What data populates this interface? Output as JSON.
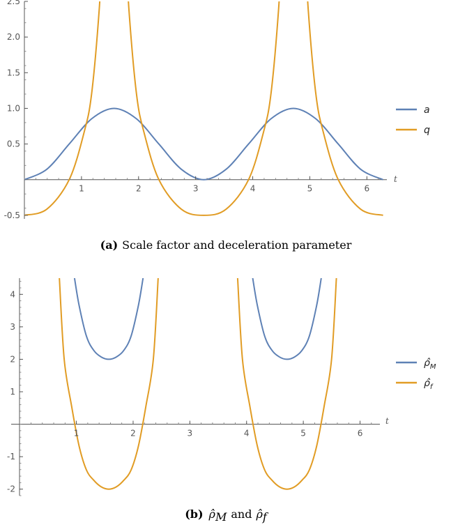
{
  "chart_data": [
    {
      "type": "line",
      "xlabel": "t",
      "ylabel": "",
      "xlim": [
        0,
        6.35
      ],
      "ylim": [
        -0.55,
        2.5
      ],
      "xticks": [
        1,
        2,
        3,
        4,
        5,
        6
      ],
      "xtick_labels": [
        "1",
        "2",
        "3",
        "4",
        "5",
        "6"
      ],
      "yticks": [
        -0.5,
        0.5,
        1.0,
        1.5,
        2.0,
        2.5
      ],
      "ytick_labels": [
        "-0.5",
        "0.5",
        "1.0",
        "1.5",
        "2.0",
        "2.5"
      ],
      "legend_position": "right",
      "series": [
        {
          "name": "a",
          "color": "#5e81b5",
          "x": [
            0,
            0.393,
            0.785,
            1.178,
            1.571,
            1.963,
            2.356,
            2.749,
            3.142,
            3.534,
            3.927,
            4.32,
            4.712,
            5.105,
            5.498,
            5.89,
            6.283
          ],
          "y": [
            0,
            0.146,
            0.5,
            0.854,
            1.0,
            0.854,
            0.5,
            0.146,
            0,
            0.146,
            0.5,
            0.854,
            1.0,
            0.854,
            0.5,
            0.146,
            0
          ]
        },
        {
          "name": "q",
          "color": "#e19c24",
          "x": [
            0,
            0.393,
            0.785,
            1.047,
            1.178,
            1.309,
            1.375,
            1.767,
            1.833,
            1.963,
            2.094,
            2.356,
            2.749,
            3.142,
            3.534,
            3.927,
            4.189,
            4.32,
            4.451,
            4.517,
            4.909,
            4.974,
            5.105,
            5.236,
            5.498,
            5.89,
            6.283
          ],
          "y": [
            -0.5,
            -0.414,
            0,
            0.667,
            1.207,
            2.366,
            3.37,
            3.37,
            2.366,
            1.207,
            0.667,
            0,
            -0.414,
            -0.5,
            -0.414,
            0,
            0.667,
            1.207,
            2.366,
            3.37,
            3.37,
            2.366,
            1.207,
            0.667,
            0,
            -0.414,
            -0.5
          ]
        }
      ]
    },
    {
      "type": "line",
      "xlabel": "t",
      "ylabel": "",
      "xlim": [
        -0.15,
        6.35
      ],
      "ylim": [
        -2.2,
        4.5
      ],
      "xticks": [
        1,
        2,
        3,
        4,
        5,
        6
      ],
      "xtick_labels": [
        "1",
        "2",
        "3",
        "4",
        "5",
        "6"
      ],
      "yticks": [
        -2,
        -1,
        1,
        2,
        3,
        4
      ],
      "ytick_labels": [
        "-2",
        "-1",
        "1",
        "2",
        "3",
        "4"
      ],
      "legend_position": "right",
      "series": [
        {
          "name": "ρ̂M",
          "color": "#5e81b5",
          "x": [
            0.967,
            1.047,
            1.178,
            1.309,
            1.44,
            1.571,
            1.702,
            1.833,
            1.963,
            2.094,
            2.175,
            4.108,
            4.189,
            4.32,
            4.451,
            4.582,
            4.712,
            4.843,
            4.974,
            5.105,
            5.236,
            5.316
          ],
          "y": [
            4.5,
            3.667,
            2.707,
            2.268,
            2.069,
            2.0,
            2.069,
            2.268,
            2.707,
            3.667,
            4.5,
            4.5,
            3.667,
            2.707,
            2.268,
            2.069,
            2.0,
            2.069,
            2.268,
            2.707,
            3.667,
            4.5
          ]
        },
        {
          "name": "ρ̂f",
          "color": "#e19c24",
          "x": [
            0.7,
            0.785,
            0.916,
            1.047,
            1.178,
            1.309,
            1.44,
            1.571,
            1.702,
            1.833,
            1.963,
            2.094,
            2.225,
            2.356,
            2.441,
            3.842,
            3.927,
            4.058,
            4.189,
            4.32,
            4.451,
            4.582,
            4.712,
            4.843,
            4.974,
            5.105,
            5.236,
            5.367,
            5.498,
            5.583
          ],
          "y": [
            4.5,
            2.0,
            0.552,
            -0.667,
            -1.414,
            -1.732,
            -1.932,
            -2.0,
            -1.932,
            -1.732,
            -1.414,
            -0.667,
            0.552,
            2.0,
            4.5,
            4.5,
            2.0,
            0.552,
            -0.667,
            -1.414,
            -1.732,
            -1.932,
            -2.0,
            -1.932,
            -1.732,
            -1.414,
            -0.667,
            0.552,
            2.0,
            4.5
          ]
        }
      ]
    }
  ],
  "legend_a": {
    "items": [
      {
        "label": "a",
        "color": "#5e81b5"
      },
      {
        "label": "q",
        "color": "#e19c24"
      }
    ]
  },
  "legend_b": {
    "items": [
      {
        "label": "ρ̂M",
        "base": "ρ̂",
        "sub": "M",
        "color": "#5e81b5"
      },
      {
        "label": "ρ̂f",
        "base": "ρ̂",
        "sub": "f",
        "color": "#e19c24"
      }
    ]
  },
  "captions": {
    "a": {
      "tag": "(a)",
      "text": "Scale factor and deceleration parameter"
    },
    "b": {
      "tag": "(b)",
      "sym1": "ρ̂",
      "sub1": "M",
      "mid": "and",
      "sym2": "ρ̂",
      "sub2": "f"
    }
  }
}
